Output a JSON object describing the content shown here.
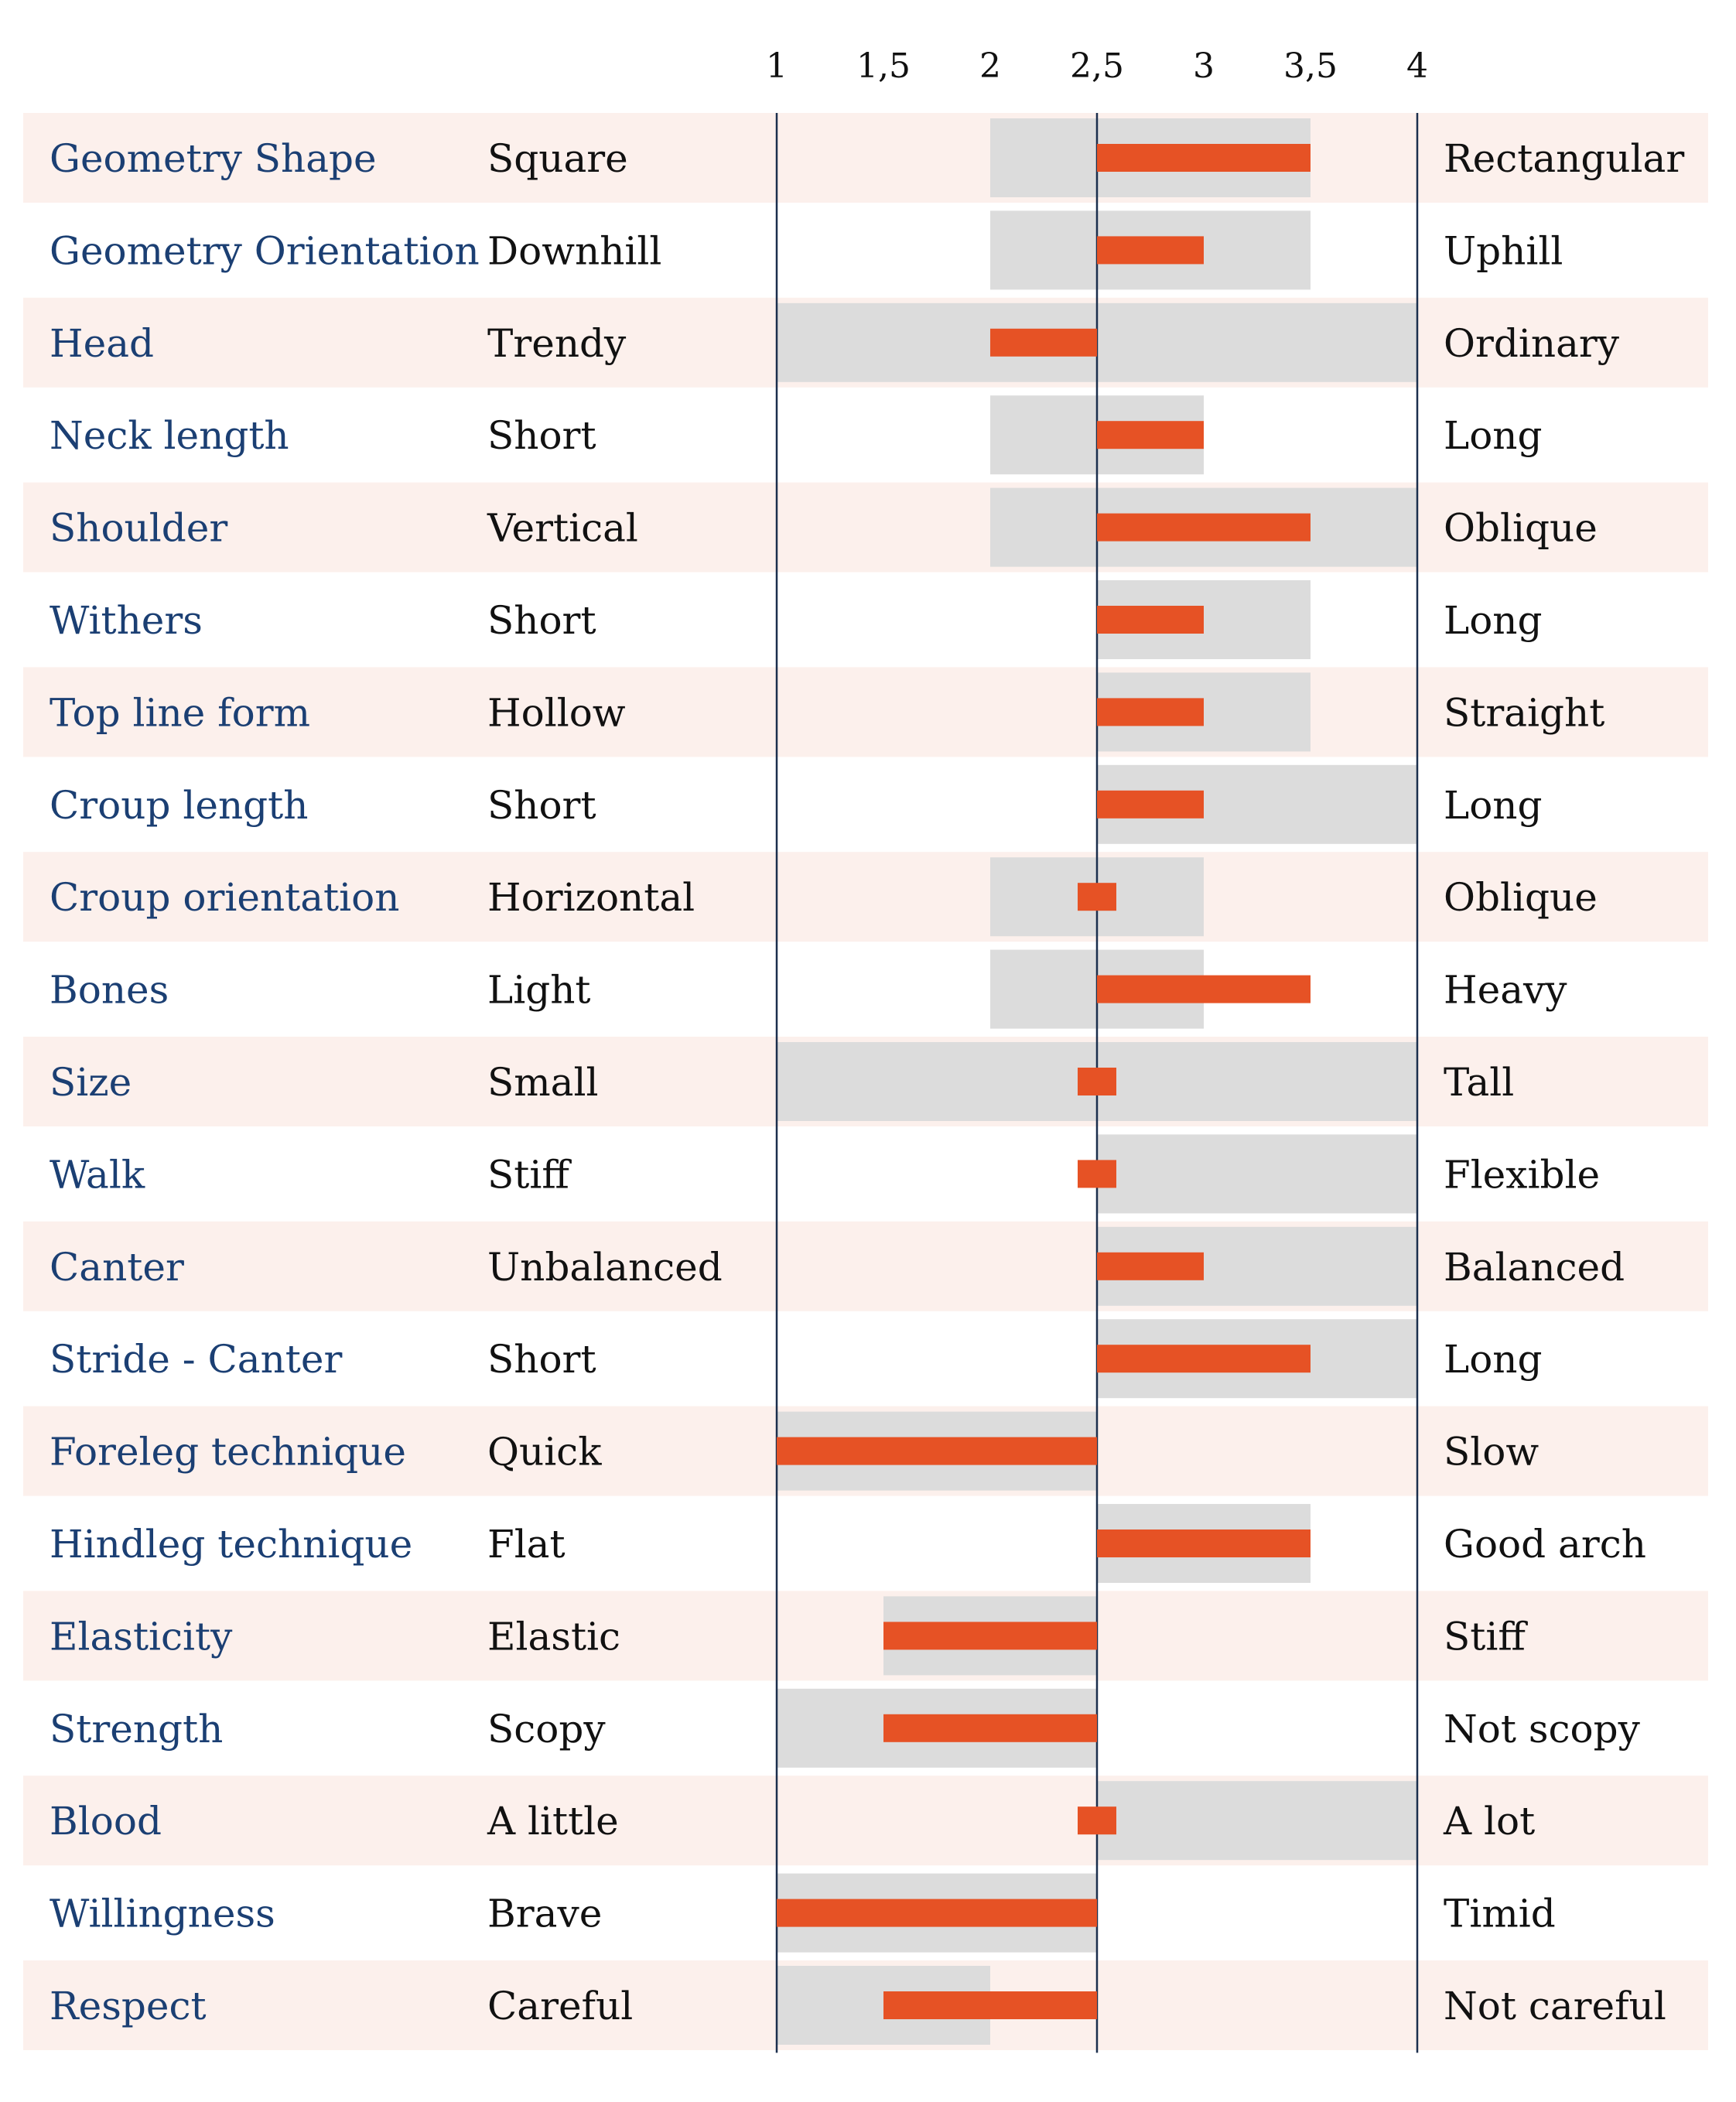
{
  "chart_data": {
    "type": "bar",
    "xticks": [
      "1",
      "1,5",
      "2",
      "2,5",
      "3",
      "3,5",
      "4"
    ],
    "xlim": [
      1,
      4
    ],
    "midpoint": 2.5,
    "colors": {
      "value_bar": "#e65225",
      "range_bar": "#dcdcdc",
      "row_tint": "#fcf0ec",
      "axis_line": "#1b2f4d",
      "trait_text": "#1b3f73"
    },
    "rows": [
      {
        "trait": "Geometry Shape",
        "low": "Square",
        "high": "Rectangular",
        "range": [
          2,
          3.5
        ],
        "value": 3.5
      },
      {
        "trait": "Geometry Orientation",
        "low": "Downhill",
        "high": "Uphill",
        "range": [
          2,
          3.5
        ],
        "value": 3
      },
      {
        "trait": "Head",
        "low": "Trendy",
        "high": "Ordinary",
        "range": [
          1,
          4
        ],
        "value": 2
      },
      {
        "trait": "Neck length",
        "low": "Short",
        "high": "Long",
        "range": [
          2,
          3
        ],
        "value": 3
      },
      {
        "trait": "Shoulder",
        "low": "Vertical",
        "high": "Oblique",
        "range": [
          2,
          4
        ],
        "value": 3.5
      },
      {
        "trait": "Withers",
        "low": "Short",
        "high": "Long",
        "range": [
          2.5,
          3.5
        ],
        "value": 3
      },
      {
        "trait": "Top line form",
        "low": "Hollow",
        "high": "Straight",
        "range": [
          2.5,
          3.5
        ],
        "value": 3
      },
      {
        "trait": "Croup length",
        "low": "Short",
        "high": "Long",
        "range": [
          2.5,
          4
        ],
        "value": 3
      },
      {
        "trait": "Croup orientation",
        "low": "Horizontal",
        "high": "Oblique",
        "range": [
          2,
          3
        ],
        "value": 2.5
      },
      {
        "trait": "Bones",
        "low": "Light",
        "high": "Heavy",
        "range": [
          2,
          3
        ],
        "value": 3.5
      },
      {
        "trait": "Size",
        "low": "Small",
        "high": "Tall",
        "range": [
          1,
          4
        ],
        "value": 2.5
      },
      {
        "trait": "Walk",
        "low": "Stiff",
        "high": "Flexible",
        "range": [
          2.5,
          4
        ],
        "value": 2.5
      },
      {
        "trait": "Canter",
        "low": "Unbalanced",
        "high": "Balanced",
        "range": [
          2.5,
          4
        ],
        "value": 3
      },
      {
        "trait": "Stride - Canter",
        "low": "Short",
        "high": "Long",
        "range": [
          2.5,
          4
        ],
        "value": 3.5
      },
      {
        "trait": "Foreleg technique",
        "low": "Quick",
        "high": "Slow",
        "range": [
          1,
          2.5
        ],
        "value": 1
      },
      {
        "trait": "Hindleg technique",
        "low": "Flat",
        "high": "Good arch",
        "range": [
          2.5,
          3.5
        ],
        "value": 3.5
      },
      {
        "trait": "Elasticity",
        "low": "Elastic",
        "high": "Stiff",
        "range": [
          1.5,
          2.5
        ],
        "value": 1.5
      },
      {
        "trait": "Strength",
        "low": "Scopy",
        "high": "Not scopy",
        "range": [
          1,
          2.5
        ],
        "value": 1.5
      },
      {
        "trait": "Blood",
        "low": "A little",
        "high": "A lot",
        "range": [
          2.5,
          4
        ],
        "value": 2.5
      },
      {
        "trait": "Willingness",
        "low": "Brave",
        "high": "Timid",
        "range": [
          1,
          2.5
        ],
        "value": 1
      },
      {
        "trait": "Respect",
        "low": "Careful",
        "high": "Not careful",
        "range": [
          1,
          2
        ],
        "value": 1.5
      }
    ]
  }
}
